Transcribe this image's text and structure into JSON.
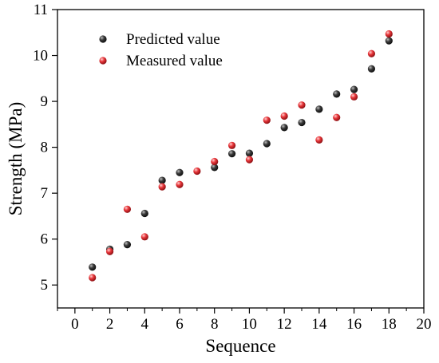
{
  "chart_data": {
    "type": "scatter",
    "title": "",
    "xlabel": "Sequence",
    "ylabel": "Strength (MPa)",
    "xlim": [
      -1,
      20
    ],
    "ylim": [
      4.5,
      11
    ],
    "x_ticks": [
      0,
      2,
      4,
      6,
      8,
      10,
      12,
      14,
      16,
      18,
      20
    ],
    "x_minor_ticks": [
      -1,
      1,
      3,
      5,
      7,
      9,
      11,
      13,
      15,
      17,
      19
    ],
    "y_ticks": [
      5,
      6,
      7,
      8,
      9,
      10,
      11
    ],
    "legend_position": "top-left",
    "series": [
      {
        "name": "Predicted value",
        "color": "#3a3a3a",
        "x": [
          1,
          2,
          3,
          4,
          5,
          6,
          8,
          9,
          10,
          11,
          12,
          13,
          14,
          15,
          16,
          17,
          18
        ],
        "y": [
          5.39,
          5.78,
          5.88,
          6.56,
          7.28,
          7.45,
          7.56,
          7.86,
          7.87,
          8.08,
          8.43,
          8.54,
          8.83,
          9.16,
          9.26,
          9.71,
          10.32
        ]
      },
      {
        "name": "Measured value",
        "color": "#e8363a",
        "x": [
          1,
          2,
          3,
          4,
          5,
          6,
          7,
          8,
          9,
          10,
          11,
          12,
          13,
          14,
          15,
          16,
          17,
          18
        ],
        "y": [
          5.16,
          5.73,
          6.65,
          6.05,
          7.14,
          7.19,
          7.48,
          7.69,
          8.04,
          7.73,
          8.59,
          8.68,
          8.92,
          8.16,
          8.65,
          9.1,
          10.04,
          10.47
        ]
      }
    ]
  }
}
